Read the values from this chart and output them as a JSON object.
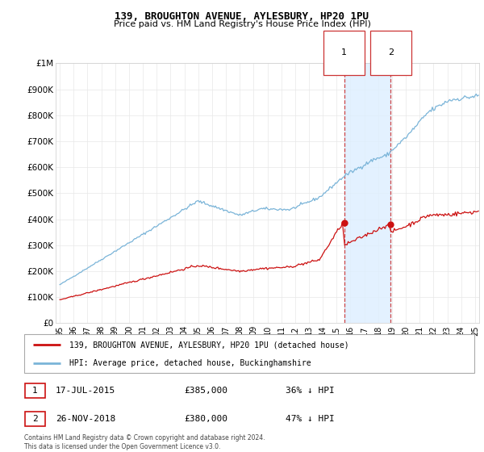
{
  "title": "139, BROUGHTON AVENUE, AYLESBURY, HP20 1PU",
  "subtitle": "Price paid vs. HM Land Registry's House Price Index (HPI)",
  "ylim": [
    0,
    1000000
  ],
  "yticks": [
    0,
    100000,
    200000,
    300000,
    400000,
    500000,
    600000,
    700000,
    800000,
    900000,
    1000000
  ],
  "ytick_labels": [
    "£0",
    "£100K",
    "£200K",
    "£300K",
    "£400K",
    "£500K",
    "£600K",
    "£700K",
    "£800K",
    "£900K",
    "£1M"
  ],
  "hpi_color": "#7ab4d8",
  "price_color": "#cc1111",
  "shade_color": "#ddeeff",
  "vline_color": "#cc3333",
  "grid_color": "#e8e8e8",
  "transaction1_x": 2015.54,
  "transaction1_y": 385000,
  "transaction2_x": 2018.91,
  "transaction2_y": 380000,
  "legend_label_price": "139, BROUGHTON AVENUE, AYLESBURY, HP20 1PU (detached house)",
  "legend_label_hpi": "HPI: Average price, detached house, Buckinghamshire",
  "table_rows": [
    {
      "num": "1",
      "date": "17-JUL-2015",
      "price": "£385,000",
      "hpi": "36% ↓ HPI"
    },
    {
      "num": "2",
      "date": "26-NOV-2018",
      "price": "£380,000",
      "hpi": "47% ↓ HPI"
    }
  ],
  "footnote": "Contains HM Land Registry data © Crown copyright and database right 2024.\nThis data is licensed under the Open Government Licence v3.0.",
  "xlim_start": 1995.0,
  "xlim_end": 2025.3
}
